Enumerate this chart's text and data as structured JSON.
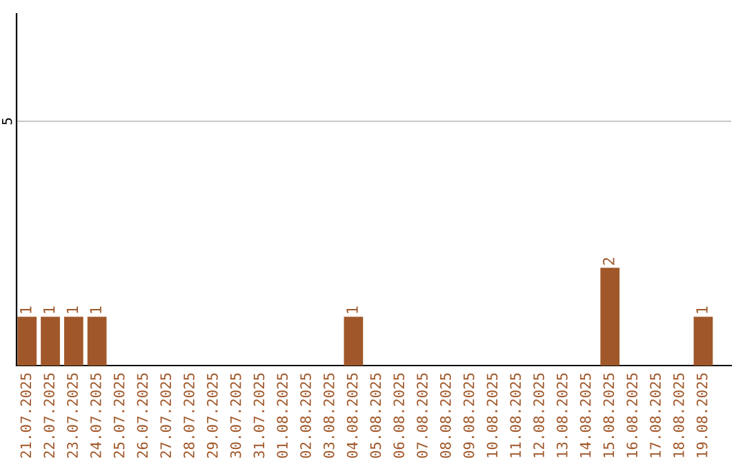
{
  "chart_data": {
    "type": "bar",
    "categories": [
      "21.07.2025",
      "22.07.2025",
      "23.07.2025",
      "24.07.2025",
      "25.07.2025",
      "26.07.2025",
      "27.07.2025",
      "28.07.2025",
      "29.07.2025",
      "30.07.2025",
      "31.07.2025",
      "01.08.2025",
      "02.08.2025",
      "03.08.2025",
      "04.08.2025",
      "05.08.2025",
      "06.08.2025",
      "07.08.2025",
      "08.08.2025",
      "09.08.2025",
      "10.08.2025",
      "11.08.2025",
      "12.08.2025",
      "13.08.2025",
      "14.08.2025",
      "15.08.2025",
      "16.08.2025",
      "17.08.2025",
      "18.08.2025",
      "19.08.2025"
    ],
    "values": [
      1,
      1,
      1,
      1,
      0,
      0,
      0,
      0,
      0,
      0,
      0,
      0,
      0,
      0,
      1,
      0,
      0,
      0,
      0,
      0,
      0,
      0,
      0,
      0,
      0,
      2,
      0,
      0,
      0,
      1
    ],
    "value_labels": [
      "1",
      "1",
      "1",
      "1",
      null,
      null,
      null,
      null,
      null,
      null,
      null,
      null,
      null,
      null,
      "1",
      null,
      null,
      null,
      null,
      null,
      null,
      null,
      null,
      null,
      null,
      "2",
      null,
      null,
      null,
      "1"
    ],
    "color": "#a0582a",
    "ylim": [
      0,
      7.2
    ],
    "yticks": [
      5
    ],
    "grid": "y"
  }
}
